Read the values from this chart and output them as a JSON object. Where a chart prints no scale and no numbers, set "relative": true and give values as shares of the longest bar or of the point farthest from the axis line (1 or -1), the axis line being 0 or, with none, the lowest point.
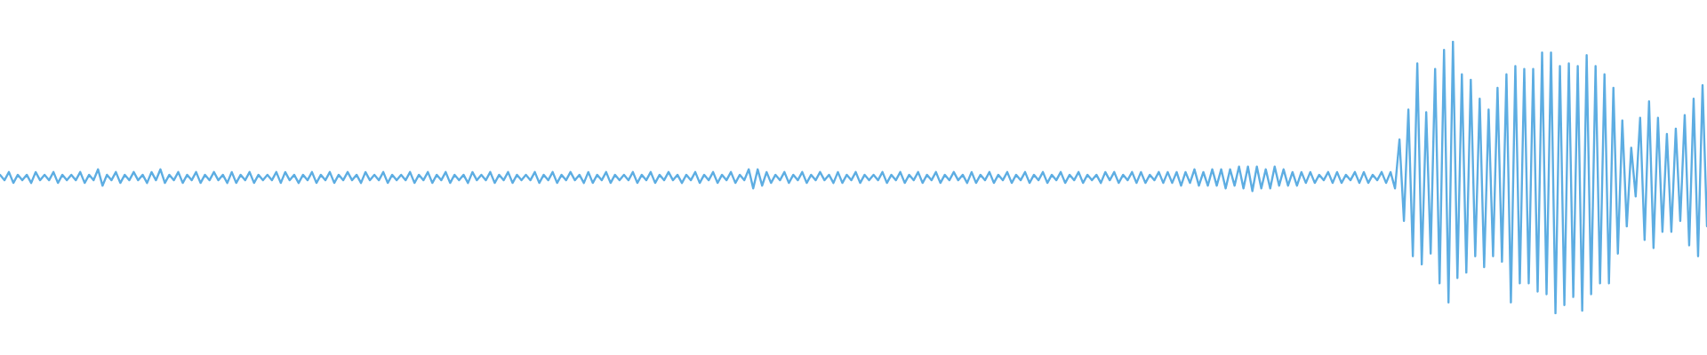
{
  "chart_data": {
    "type": "line",
    "relative": true,
    "color": "#5dade2",
    "categories": [
      null,
      null,
      null,
      null,
      null,
      null,
      null,
      null,
      null,
      null,
      null,
      null,
      null,
      null,
      null,
      null,
      null,
      null,
      null,
      null,
      null,
      null,
      null,
      null,
      null,
      null,
      null,
      null,
      null,
      null,
      null,
      null,
      null,
      null,
      null,
      null,
      null,
      null,
      null,
      null,
      null,
      null,
      null,
      null,
      null,
      null,
      null,
      null,
      null,
      null,
      null,
      null,
      null,
      null,
      null,
      null,
      null,
      null,
      null,
      null,
      null,
      null,
      null,
      null,
      null,
      null,
      null,
      null,
      null,
      null,
      null,
      null,
      null,
      null,
      null,
      null,
      null,
      null,
      null,
      null,
      null,
      null,
      null,
      null,
      null,
      null,
      null,
      null,
      null,
      null,
      null,
      null,
      null,
      null,
      null,
      null,
      null,
      null,
      null,
      null,
      null,
      null,
      null,
      null,
      null,
      null,
      null,
      null,
      null,
      null,
      null,
      null,
      null,
      null,
      null,
      null,
      null,
      null,
      null,
      null,
      null,
      null,
      null,
      null,
      null,
      null,
      null,
      null,
      null,
      null,
      null,
      null,
      null,
      null,
      null,
      null,
      null,
      null,
      null,
      null,
      null,
      null,
      null,
      null,
      null,
      null,
      null,
      null,
      null,
      null,
      null,
      null,
      null,
      null,
      null,
      null,
      null,
      null,
      null,
      null,
      null,
      null,
      null,
      null,
      null,
      null,
      null,
      null,
      null,
      null,
      null,
      null,
      null,
      null,
      null,
      null,
      null,
      null,
      null,
      null,
      null,
      null,
      null,
      null,
      null,
      null,
      null,
      null,
      null,
      null,
      null,
      null,
      null,
      null,
      null,
      null,
      null,
      null,
      null,
      null,
      null,
      null,
      null,
      null,
      null,
      null,
      null,
      null,
      null,
      null,
      null,
      null,
      null,
      null,
      null,
      null,
      null,
      null,
      null,
      null,
      null,
      null,
      null,
      null,
      null,
      null,
      null,
      null,
      null,
      null,
      null,
      null,
      null,
      null,
      null,
      null,
      null,
      null,
      null,
      null,
      null,
      null,
      null,
      null,
      null,
      null,
      null,
      null,
      null,
      null,
      null,
      null,
      null,
      null,
      null,
      null,
      null,
      null,
      null,
      null,
      null,
      null,
      null,
      null,
      null,
      null,
      null,
      null,
      null,
      null,
      null,
      null,
      null,
      null,
      null,
      null,
      null,
      null,
      null,
      null,
      null,
      null,
      null,
      null,
      null,
      null,
      null,
      null,
      null,
      null,
      null,
      null,
      null,
      null,
      null,
      null,
      null,
      null,
      null,
      null,
      null,
      null,
      null,
      null,
      null,
      null,
      null,
      null,
      null,
      null,
      null,
      null,
      null,
      null,
      null,
      null,
      null,
      null,
      null,
      null,
      null,
      null,
      null,
      null,
      null,
      null,
      null,
      null,
      null,
      null,
      null,
      null,
      null,
      null,
      null,
      null,
      null,
      null,
      null,
      null,
      null,
      null,
      null,
      null,
      null,
      null,
      null,
      null,
      null,
      null,
      null,
      null,
      null,
      null,
      null,
      null,
      null,
      null,
      null,
      null,
      null,
      null,
      null,
      null,
      null,
      null,
      null,
      null,
      null,
      null,
      null,
      null,
      null,
      null,
      null,
      null,
      null,
      null,
      null,
      null,
      null,
      null,
      null,
      null
    ],
    "values": [
      0.51,
      0.49,
      0.52,
      0.48,
      0.51,
      0.49,
      0.51,
      0.48,
      0.52,
      0.49,
      0.51,
      0.49,
      0.52,
      0.48,
      0.51,
      0.49,
      0.51,
      0.49,
      0.52,
      0.48,
      0.51,
      0.49,
      0.53,
      0.47,
      0.51,
      0.49,
      0.52,
      0.48,
      0.51,
      0.49,
      0.52,
      0.49,
      0.51,
      0.48,
      0.52,
      0.49,
      0.53,
      0.48,
      0.51,
      0.49,
      0.52,
      0.48,
      0.51,
      0.49,
      0.52,
      0.48,
      0.51,
      0.49,
      0.52,
      0.49,
      0.51,
      0.48,
      0.52,
      0.48,
      0.51,
      0.49,
      0.52,
      0.48,
      0.51,
      0.49,
      0.51,
      0.49,
      0.52,
      0.48,
      0.52,
      0.49,
      0.51,
      0.48,
      0.51,
      0.49,
      0.52,
      0.48,
      0.51,
      0.49,
      0.52,
      0.48,
      0.51,
      0.49,
      0.52,
      0.49,
      0.51,
      0.48,
      0.52,
      0.49,
      0.51,
      0.49,
      0.52,
      0.48,
      0.51,
      0.49,
      0.51,
      0.49,
      0.52,
      0.48,
      0.51,
      0.49,
      0.52,
      0.48,
      0.51,
      0.49,
      0.52,
      0.48,
      0.51,
      0.49,
      0.51,
      0.48,
      0.52,
      0.49,
      0.51,
      0.49,
      0.52,
      0.48,
      0.51,
      0.49,
      0.52,
      0.48,
      0.51,
      0.49,
      0.51,
      0.49,
      0.52,
      0.48,
      0.51,
      0.49,
      0.52,
      0.48,
      0.51,
      0.49,
      0.52,
      0.49,
      0.51,
      0.48,
      0.52,
      0.48,
      0.51,
      0.49,
      0.52,
      0.48,
      0.51,
      0.49,
      0.51,
      0.49,
      0.52,
      0.48,
      0.51,
      0.49,
      0.52,
      0.48,
      0.51,
      0.49,
      0.52,
      0.49,
      0.51,
      0.48,
      0.51,
      0.49,
      0.52,
      0.48,
      0.51,
      0.49,
      0.52,
      0.48,
      0.51,
      0.49,
      0.52,
      0.48,
      0.51,
      0.49,
      0.53,
      0.46,
      0.53,
      0.47,
      0.52,
      0.48,
      0.51,
      0.49,
      0.52,
      0.48,
      0.51,
      0.49,
      0.52,
      0.48,
      0.51,
      0.49,
      0.52,
      0.49,
      0.51,
      0.48,
      0.52,
      0.48,
      0.51,
      0.49,
      0.52,
      0.48,
      0.51,
      0.49,
      0.51,
      0.49,
      0.52,
      0.48,
      0.51,
      0.49,
      0.52,
      0.48,
      0.51,
      0.49,
      0.52,
      0.48,
      0.51,
      0.49,
      0.52,
      0.48,
      0.51,
      0.49,
      0.52,
      0.49,
      0.51,
      0.48,
      0.52,
      0.48,
      0.51,
      0.49,
      0.52,
      0.48,
      0.51,
      0.49,
      0.52,
      0.48,
      0.51,
      0.49,
      0.52,
      0.48,
      0.51,
      0.49,
      0.52,
      0.48,
      0.51,
      0.49,
      0.52,
      0.48,
      0.51,
      0.49,
      0.52,
      0.48,
      0.51,
      0.49,
      0.51,
      0.48,
      0.52,
      0.49,
      0.52,
      0.48,
      0.51,
      0.49,
      0.52,
      0.48,
      0.52,
      0.48,
      0.51,
      0.49,
      0.52,
      0.48,
      0.52,
      0.48,
      0.52,
      0.47,
      0.52,
      0.48,
      0.53,
      0.47,
      0.52,
      0.47,
      0.53,
      0.47,
      0.53,
      0.46,
      0.53,
      0.47,
      0.54,
      0.46,
      0.54,
      0.45,
      0.54,
      0.46,
      0.53,
      0.46,
      0.54,
      0.47,
      0.53,
      0.47,
      0.52,
      0.47,
      0.52,
      0.48,
      0.52,
      0.48,
      0.51,
      0.49,
      0.52,
      0.48,
      0.52,
      0.48,
      0.51,
      0.49,
      0.52,
      0.48,
      0.52,
      0.48,
      0.51,
      0.49,
      0.52,
      0.48,
      0.52,
      0.46,
      0.64,
      0.34,
      0.75,
      0.21,
      0.92,
      0.18,
      0.74,
      0.22,
      0.9,
      0.11,
      0.97,
      0.04,
      1,
      0.13,
      0.88,
      0.15,
      0.86,
      0.21,
      0.79,
      0.17,
      0.75,
      0.21,
      0.83,
      0.19,
      0.88,
      0.04,
      0.91,
      0.11,
      0.9,
      0.11,
      0.9,
      0.08,
      0.96,
      0.07,
      0.96,
      0,
      0.91,
      0.03,
      0.92,
      0.06,
      0.91,
      0.01,
      0.95,
      0.07,
      0.91,
      0.11,
      0.88,
      0.11,
      0.83,
      0.22,
      0.71,
      0.32,
      0.61,
      0.43,
      0.72,
      0.27,
      0.78,
      0.24,
      0.72,
      0.3,
      0.66,
      0.3,
      0.68,
      0.34,
      0.73,
      0.25,
      0.79,
      0.21,
      0.84,
      0.32
    ]
  }
}
